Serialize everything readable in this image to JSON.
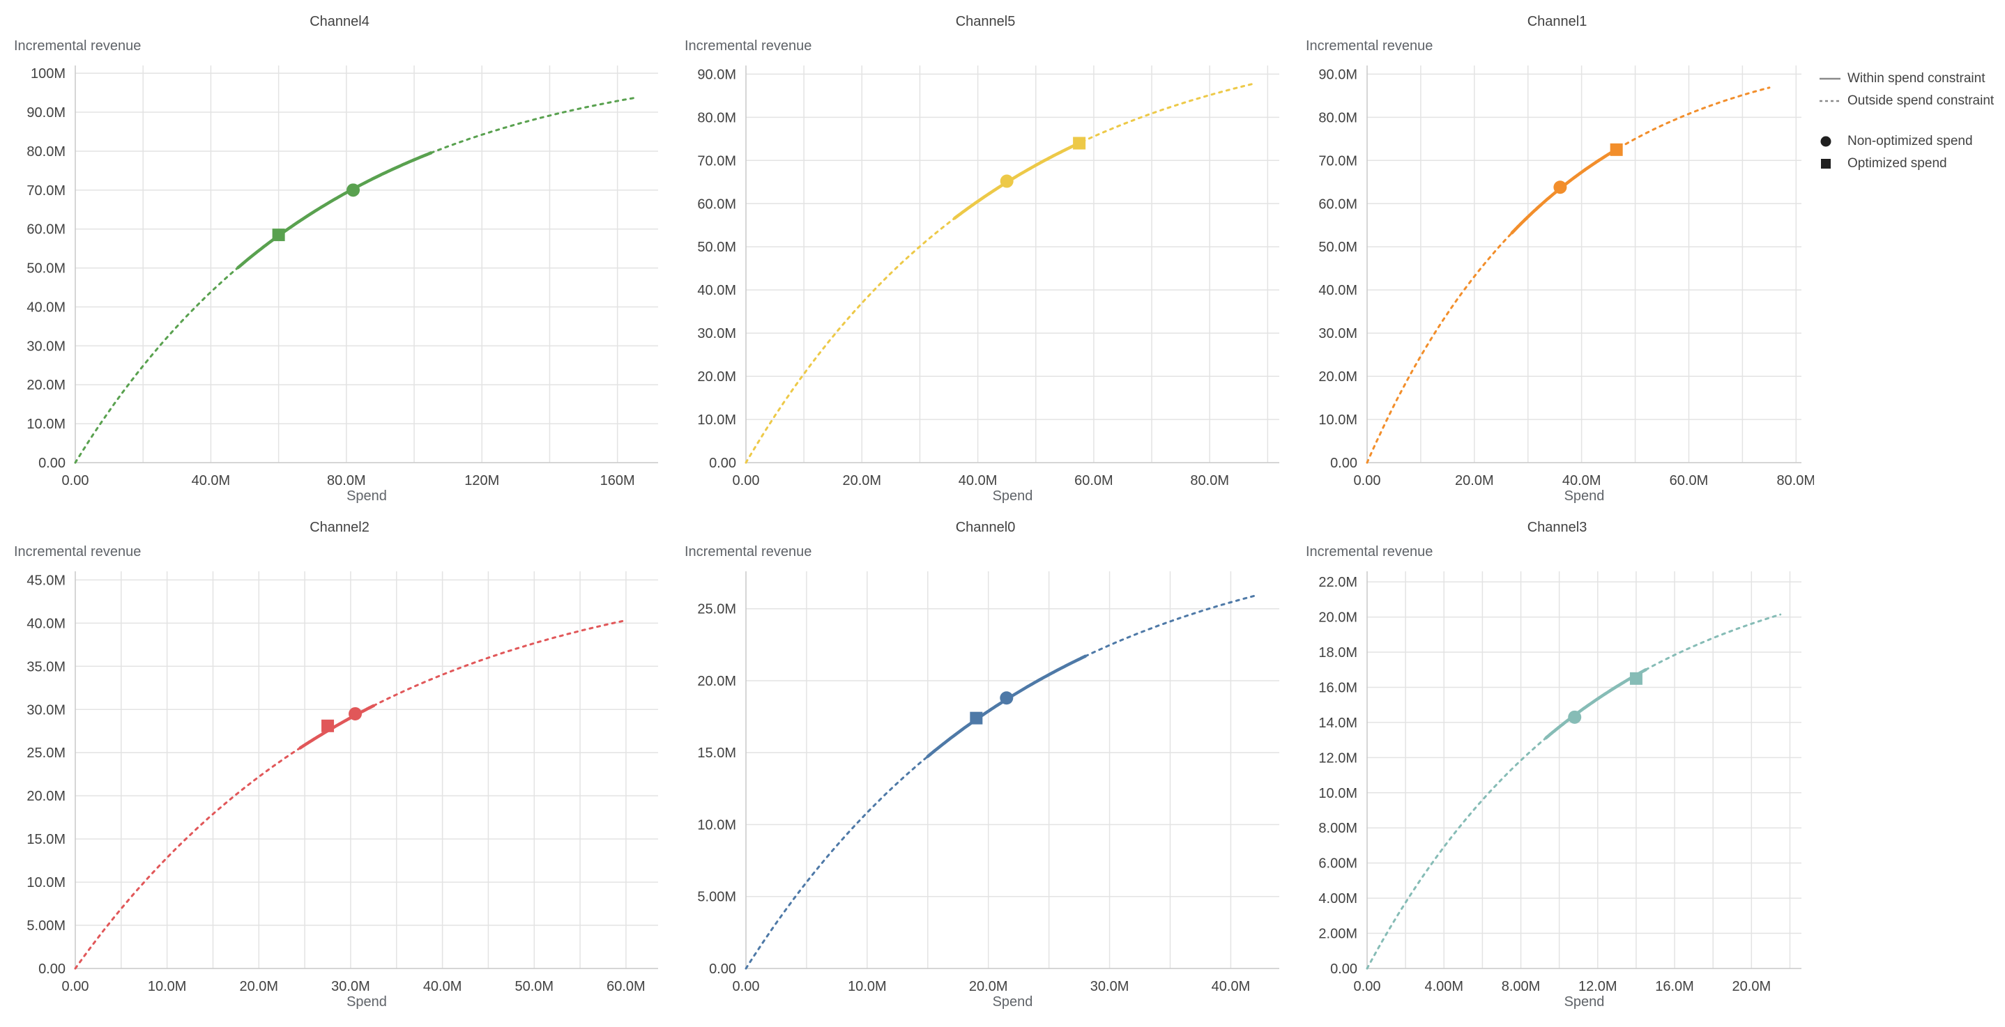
{
  "legend": {
    "items": [
      {
        "symbol": "solid-line",
        "label": "Within spend constraint"
      },
      {
        "symbol": "dashed-line",
        "label": "Outside spend constraint"
      },
      {
        "symbol": "circle",
        "label": "Non-optimized spend"
      },
      {
        "symbol": "square",
        "label": "Optimized spend"
      }
    ]
  },
  "chart_data": [
    {
      "type": "line",
      "title": "Channel4",
      "ylabel": "Incremental revenue",
      "xlabel": "Spend",
      "color": "#59A14F",
      "unit": "M",
      "xlim": [
        0,
        172
      ],
      "ylim": [
        0,
        102
      ],
      "x_ticks": [
        {
          "v": 0,
          "label": "0.00"
        },
        {
          "v": 40,
          "label": "40.0M"
        },
        {
          "v": 80,
          "label": "80.0M"
        },
        {
          "v": 120,
          "label": "120M"
        },
        {
          "v": 160,
          "label": "160M"
        }
      ],
      "y_ticks": [
        {
          "v": 0,
          "label": "0.00"
        },
        {
          "v": 10,
          "label": "10.0M"
        },
        {
          "v": 20,
          "label": "20.0M"
        },
        {
          "v": 30,
          "label": "30.0M"
        },
        {
          "v": 40,
          "label": "40.0M"
        },
        {
          "v": 50,
          "label": "50.0M"
        },
        {
          "v": 60,
          "label": "60.0M"
        },
        {
          "v": 70,
          "label": "70.0M"
        },
        {
          "v": 80,
          "label": "80.0M"
        },
        {
          "v": 90,
          "label": "90.0M"
        },
        {
          "v": 100,
          "label": "100M"
        }
      ],
      "minor_x_step": 20,
      "curve": {
        "model": "y=A*(1-exp(-b*x)) in millions",
        "A": 105,
        "b": 0.0135,
        "x_end": 165
      },
      "solid_range": [
        48,
        105
      ],
      "markers": {
        "non_optimized": {
          "x": 82,
          "y": 70.0
        },
        "optimized": {
          "x": 60,
          "y": 58.5
        }
      }
    },
    {
      "type": "line",
      "title": "Channel5",
      "ylabel": "Incremental revenue",
      "xlabel": "Spend",
      "color": "#EDC948",
      "unit": "M",
      "xlim": [
        0,
        92
      ],
      "ylim": [
        0,
        92
      ],
      "x_ticks": [
        {
          "v": 0,
          "label": "0.00"
        },
        {
          "v": 20,
          "label": "20.0M"
        },
        {
          "v": 40,
          "label": "40.0M"
        },
        {
          "v": 60,
          "label": "60.0M"
        },
        {
          "v": 80,
          "label": "80.0M"
        }
      ],
      "y_ticks": [
        {
          "v": 0,
          "label": "0.00"
        },
        {
          "v": 10,
          "label": "10.0M"
        },
        {
          "v": 20,
          "label": "20.0M"
        },
        {
          "v": 30,
          "label": "30.0M"
        },
        {
          "v": 40,
          "label": "40.0M"
        },
        {
          "v": 50,
          "label": "50.0M"
        },
        {
          "v": 60,
          "label": "60.0M"
        },
        {
          "v": 70,
          "label": "70.0M"
        },
        {
          "v": 80,
          "label": "80.0M"
        },
        {
          "v": 90,
          "label": "90.0M"
        }
      ],
      "minor_x_step": 10,
      "curve": {
        "model": "y=A*(1-exp(-b*x)) in millions",
        "A": 102,
        "b": 0.0225,
        "x_end": 88
      },
      "solid_range": [
        36,
        58
      ],
      "markers": {
        "non_optimized": {
          "x": 45,
          "y": 65.2
        },
        "optimized": {
          "x": 57.5,
          "y": 74.0
        }
      }
    },
    {
      "type": "line",
      "title": "Channel1",
      "ylabel": "Incremental revenue",
      "xlabel": "Spend",
      "color": "#F28E2B",
      "unit": "M",
      "xlim": [
        0,
        81
      ],
      "ylim": [
        0,
        92
      ],
      "x_ticks": [
        {
          "v": 0,
          "label": "0.00"
        },
        {
          "v": 20,
          "label": "20.0M"
        },
        {
          "v": 40,
          "label": "40.0M"
        },
        {
          "v": 60,
          "label": "60.0M"
        },
        {
          "v": 80,
          "label": "80.0M"
        }
      ],
      "y_ticks": [
        {
          "v": 0,
          "label": "0.00"
        },
        {
          "v": 10,
          "label": "10.0M"
        },
        {
          "v": 20,
          "label": "20.0M"
        },
        {
          "v": 30,
          "label": "30.0M"
        },
        {
          "v": 40,
          "label": "40.0M"
        },
        {
          "v": 50,
          "label": "50.0M"
        },
        {
          "v": 60,
          "label": "60.0M"
        },
        {
          "v": 70,
          "label": "70.0M"
        },
        {
          "v": 80,
          "label": "80.0M"
        },
        {
          "v": 90,
          "label": "90.0M"
        }
      ],
      "minor_x_step": 10,
      "curve": {
        "model": "y=A*(1-exp(-b*x)) in millions",
        "A": 98,
        "b": 0.029,
        "x_end": 75
      },
      "solid_range": [
        27,
        47
      ],
      "markers": {
        "non_optimized": {
          "x": 36,
          "y": 63.8
        },
        "optimized": {
          "x": 46.5,
          "y": 72.5
        }
      }
    },
    {
      "type": "line",
      "title": "Channel2",
      "ylabel": "Incremental revenue",
      "xlabel": "Spend",
      "color": "#E15759",
      "unit": "M",
      "xlim": [
        0,
        63.5
      ],
      "ylim": [
        0,
        46
      ],
      "x_ticks": [
        {
          "v": 0,
          "label": "0.00"
        },
        {
          "v": 10,
          "label": "10.0M"
        },
        {
          "v": 20,
          "label": "20.0M"
        },
        {
          "v": 30,
          "label": "30.0M"
        },
        {
          "v": 40,
          "label": "40.0M"
        },
        {
          "v": 50,
          "label": "50.0M"
        },
        {
          "v": 60,
          "label": "60.0M"
        }
      ],
      "y_ticks": [
        {
          "v": 0,
          "label": "0.00"
        },
        {
          "v": 5,
          "label": "5.00M"
        },
        {
          "v": 10,
          "label": "10.0M"
        },
        {
          "v": 15,
          "label": "15.0M"
        },
        {
          "v": 20,
          "label": "20.0M"
        },
        {
          "v": 25,
          "label": "25.0M"
        },
        {
          "v": 30,
          "label": "30.0M"
        },
        {
          "v": 35,
          "label": "35.0M"
        },
        {
          "v": 40,
          "label": "40.0M"
        },
        {
          "v": 45,
          "label": "45.0M"
        }
      ],
      "minor_x_step": 5,
      "curve": {
        "model": "y=A*(1-exp(-b*x)) in millions",
        "A": 47.5,
        "b": 0.0315,
        "x_end": 60
      },
      "solid_range": [
        24.5,
        32.5
      ],
      "markers": {
        "non_optimized": {
          "x": 30.5,
          "y": 29.5
        },
        "optimized": {
          "x": 27.5,
          "y": 28.1
        }
      }
    },
    {
      "type": "line",
      "title": "Channel0",
      "ylabel": "Incremental revenue",
      "xlabel": "Spend",
      "color": "#4E79A7",
      "unit": "M",
      "xlim": [
        0,
        44
      ],
      "ylim": [
        0,
        27.6
      ],
      "x_ticks": [
        {
          "v": 0,
          "label": "0.00"
        },
        {
          "v": 10,
          "label": "10.0M"
        },
        {
          "v": 20,
          "label": "20.0M"
        },
        {
          "v": 30,
          "label": "30.0M"
        },
        {
          "v": 40,
          "label": "40.0M"
        }
      ],
      "y_ticks": [
        {
          "v": 0,
          "label": "0.00"
        },
        {
          "v": 5,
          "label": "5.00M"
        },
        {
          "v": 10,
          "label": "10.0M"
        },
        {
          "v": 15,
          "label": "15.0M"
        },
        {
          "v": 20,
          "label": "20.0M"
        },
        {
          "v": 25,
          "label": "25.0M"
        }
      ],
      "minor_x_step": 5,
      "curve": {
        "model": "y=A*(1-exp(-b*x)) in millions",
        "A": 31,
        "b": 0.043,
        "x_end": 42
      },
      "solid_range": [
        15,
        28
      ],
      "markers": {
        "non_optimized": {
          "x": 21.5,
          "y": 18.8
        },
        "optimized": {
          "x": 19,
          "y": 17.4
        }
      }
    },
    {
      "type": "line",
      "title": "Channel3",
      "ylabel": "Incremental revenue",
      "xlabel": "Spend",
      "color": "#86BCB6",
      "unit": "M",
      "xlim": [
        0,
        22.6
      ],
      "ylim": [
        0,
        22.6
      ],
      "x_ticks": [
        {
          "v": 0,
          "label": "0.00"
        },
        {
          "v": 4,
          "label": "4.00M"
        },
        {
          "v": 8,
          "label": "8.00M"
        },
        {
          "v": 12,
          "label": "12.0M"
        },
        {
          "v": 16,
          "label": "16.0M"
        },
        {
          "v": 20,
          "label": "20.0M"
        }
      ],
      "y_ticks": [
        {
          "v": 0,
          "label": "0.00"
        },
        {
          "v": 2,
          "label": "2.00M"
        },
        {
          "v": 4,
          "label": "4.00M"
        },
        {
          "v": 6,
          "label": "6.00M"
        },
        {
          "v": 8,
          "label": "8.00M"
        },
        {
          "v": 10,
          "label": "10.0M"
        },
        {
          "v": 12,
          "label": "12.0M"
        },
        {
          "v": 14,
          "label": "14.0M"
        },
        {
          "v": 16,
          "label": "16.0M"
        },
        {
          "v": 18,
          "label": "18.0M"
        },
        {
          "v": 20,
          "label": "20.0M"
        },
        {
          "v": 22,
          "label": "22.0M"
        }
      ],
      "minor_x_step": 2,
      "curve": {
        "model": "y=A*(1-exp(-b*x)) in millions",
        "A": 24,
        "b": 0.085,
        "x_end": 21.5
      },
      "solid_range": [
        9.3,
        14.5
      ],
      "markers": {
        "non_optimized": {
          "x": 10.8,
          "y": 14.3
        },
        "optimized": {
          "x": 14,
          "y": 16.5
        }
      }
    }
  ]
}
